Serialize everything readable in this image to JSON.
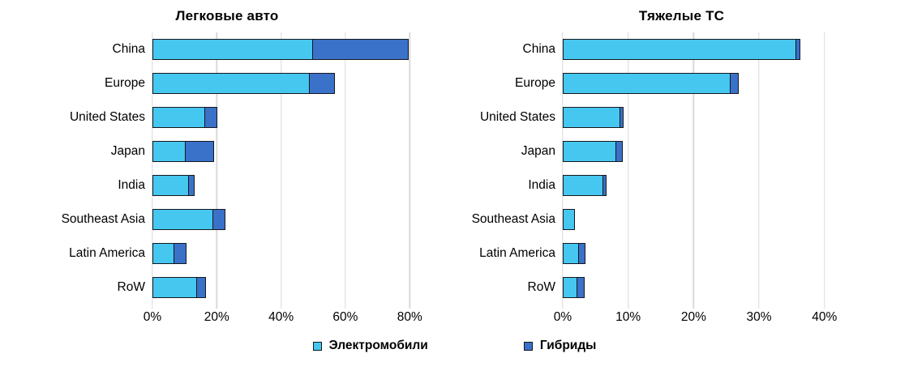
{
  "colors": {
    "ev_fill": "#45C7F0",
    "hybrid_fill": "#3A71C9",
    "bar_border": "#15181E",
    "gridline": "#D9D9D9",
    "text": "#000000",
    "background": "#FFFFFF"
  },
  "legend": {
    "items": [
      {
        "key": "ev",
        "label": "Электромобили",
        "color": "#45C7F0"
      },
      {
        "key": "hybrid",
        "label": "Гибриды",
        "color": "#3A71C9"
      }
    ],
    "position": "bottom"
  },
  "chart_data": [
    {
      "type": "bar",
      "orientation": "horizontal",
      "stacked": true,
      "title": "Легковые авто",
      "categories": [
        "China",
        "Europe",
        "United States",
        "Japan",
        "India",
        "Southeast Asia",
        "Latin America",
        "RoW"
      ],
      "series": [
        {
          "name": "Электромобили",
          "color": "#45C7F0",
          "values": [
            50,
            49,
            16.5,
            10.5,
            11.5,
            19,
            7,
            14
          ]
        },
        {
          "name": "Гибриды",
          "color": "#3A71C9",
          "values": [
            30,
            8,
            4,
            9,
            2,
            4,
            4,
            3
          ]
        }
      ],
      "x_ticks": [
        "0%",
        "20%",
        "40%",
        "60%",
        "80%"
      ],
      "x_tick_values": [
        0,
        20,
        40,
        60,
        80
      ],
      "xlim": [
        0,
        87
      ],
      "grid": true,
      "unit": "%"
    },
    {
      "type": "bar",
      "orientation": "horizontal",
      "stacked": true,
      "title": "Тяжелые ТС",
      "categories": [
        "China",
        "Europe",
        "United States",
        "Japan",
        "India",
        "Southeast Asia",
        "Latin America",
        "RoW"
      ],
      "series": [
        {
          "name": "Электромобили",
          "color": "#45C7F0",
          "values": [
            35.8,
            25.7,
            8.8,
            8.3,
            6.3,
            1.8,
            2.5,
            2.3
          ]
        },
        {
          "name": "Гибриды",
          "color": "#3A71C9",
          "values": [
            0.7,
            1.4,
            0.7,
            1.0,
            0.6,
            0,
            1.1,
            1.2
          ]
        }
      ],
      "x_ticks": [
        "0%",
        "10%",
        "20%",
        "30%",
        "40%"
      ],
      "x_tick_values": [
        0,
        10,
        20,
        30,
        40
      ],
      "xlim": [
        0,
        44
      ],
      "grid": true,
      "unit": "%"
    }
  ]
}
